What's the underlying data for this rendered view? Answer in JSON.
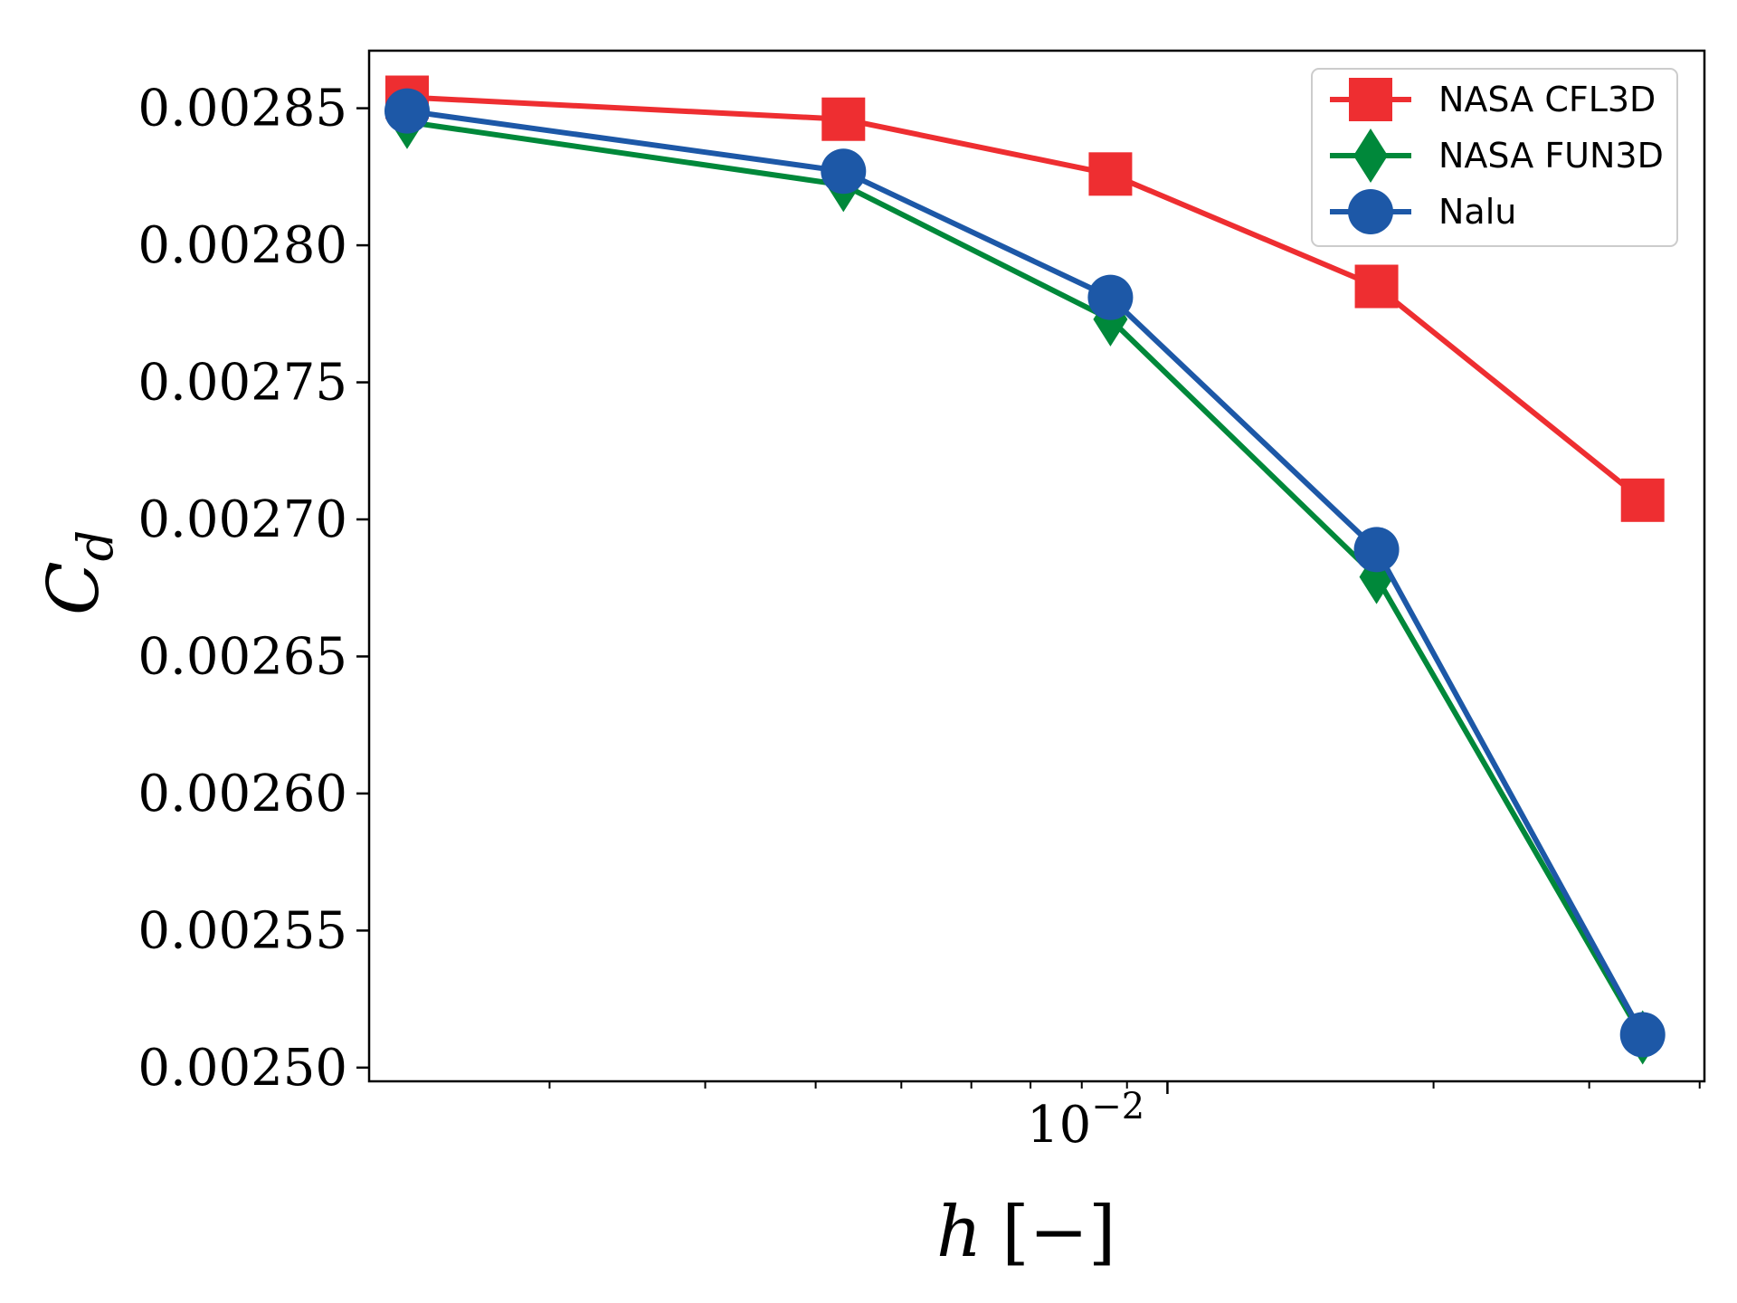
{
  "chart_data": {
    "type": "line",
    "title": "",
    "xlabel_main": "h",
    "xlabel_unit": "[−]",
    "ylabel_main": "C",
    "ylabel_sub": "d",
    "xscale": "log",
    "xlim": [
      0.00125,
      0.0405
    ],
    "ylim": [
      0.002495,
      0.002871
    ],
    "x": [
      0.00138,
      0.0043,
      0.00862,
      0.01724,
      0.03448
    ],
    "x_tick_base": "10",
    "x_tick_exp": "−2",
    "x_major_tick_value": 0.01,
    "x_minor_tick_values": [
      0.002,
      0.003,
      0.004,
      0.005,
      0.006,
      0.007,
      0.008,
      0.009,
      0.02,
      0.03,
      0.04
    ],
    "y_ticks": [
      0.0025,
      0.00255,
      0.0026,
      0.00265,
      0.0027,
      0.00275,
      0.0028,
      0.00285
    ],
    "y_tick_labels": [
      "0.00250",
      "0.00255",
      "0.00260",
      "0.00265",
      "0.00270",
      "0.00275",
      "0.00280",
      "0.00285"
    ],
    "legend_position": "top-right",
    "series": [
      {
        "name": "NASA CFL3D",
        "color": "#ee2e31",
        "marker": "square",
        "values": [
          0.002854,
          0.002846,
          0.002826,
          0.002785,
          0.002707
        ]
      },
      {
        "name": "NASA FUN3D",
        "color": "#00883a",
        "marker": "diamond",
        "values": [
          0.002845,
          0.002822,
          0.002773,
          0.002679,
          0.002511
        ]
      },
      {
        "name": "Nalu",
        "color": "#1d58a7",
        "marker": "circle",
        "values": [
          0.002849,
          0.002827,
          0.002781,
          0.002689,
          0.002512
        ]
      }
    ]
  }
}
